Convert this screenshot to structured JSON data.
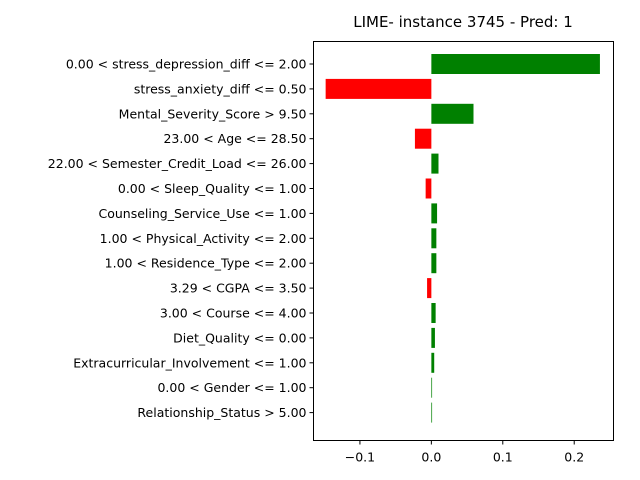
{
  "chart_data": {
    "type": "bar",
    "orientation": "horizontal",
    "title": "LIME- instance 3745 - Pred: 1",
    "xlabel": "",
    "ylabel": "",
    "xlim": [
      -0.165,
      0.255
    ],
    "xticks": [
      -0.1,
      0.0,
      0.1,
      0.2
    ],
    "xtick_labels": [
      "−0.1",
      "0.0",
      "0.1",
      "0.2"
    ],
    "positive_color": "#008000",
    "negative_color": "#ff0000",
    "grid": false,
    "categories": [
      "0.00 < stress_depression_diff <= 2.00",
      "stress_anxiety_diff <= 0.50",
      "Mental_Severity_Score > 9.50",
      "23.00 < Age <= 28.50",
      "22.00 < Semester_Credit_Load <= 26.00",
      "0.00 < Sleep_Quality <= 1.00",
      "Counseling_Service_Use <= 1.00",
      "1.00 < Physical_Activity <= 2.00",
      "1.00 < Residence_Type <= 2.00",
      "3.29 < CGPA <= 3.50",
      "3.00 < Course <= 4.00",
      "Diet_Quality <= 0.00",
      "Extracurricular_Involvement <= 1.00",
      "0.00 < Gender <= 1.00",
      "Relationship_Status > 5.00"
    ],
    "values": [
      0.236,
      -0.148,
      0.059,
      -0.023,
      0.01,
      -0.008,
      0.008,
      0.007,
      0.007,
      -0.006,
      0.006,
      0.005,
      0.004,
      0.001,
      0.001
    ]
  }
}
